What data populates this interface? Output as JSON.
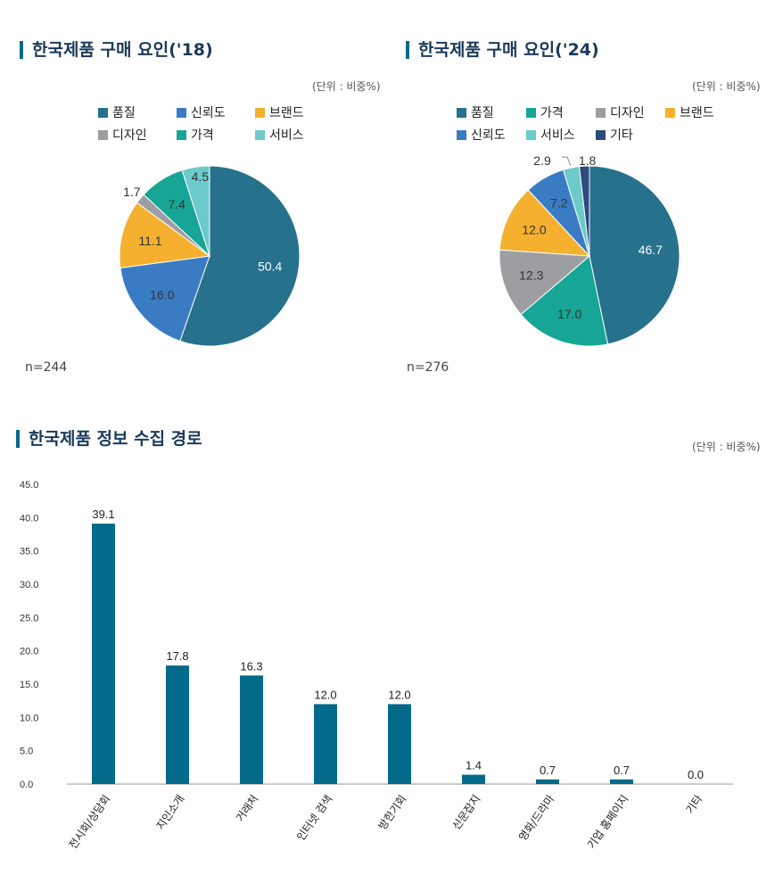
{
  "colors": {
    "품질": "#26718c",
    "신뢰도": "#3a7cc4",
    "브랜드": "#f4b02e",
    "디자인": "#9c9ea1",
    "가격": "#17a596",
    "서비스": "#6ccaca",
    "기타": "#2c4a7c",
    "bar": "#046a8a"
  },
  "chart_data": [
    {
      "type": "pie",
      "title": "한국제품 구매 요인('18)",
      "unit": "(단위 : 비중%)",
      "n": "n=244",
      "legend": [
        "품질",
        "신뢰도",
        "브랜드",
        "디자인",
        "가격",
        "서비스"
      ],
      "slices": [
        {
          "label": "품질",
          "value": 50.4
        },
        {
          "label": "신뢰도",
          "value": 16.0
        },
        {
          "label": "브랜드",
          "value": 11.1
        },
        {
          "label": "디자인",
          "value": 1.7
        },
        {
          "label": "가격",
          "value": 7.4
        },
        {
          "label": "서비스",
          "value": 4.5
        }
      ]
    },
    {
      "type": "pie",
      "title": "한국제품 구매 요인('24)",
      "unit": "(단위 : 비중%)",
      "n": "n=276",
      "legend": [
        "품질",
        "가격",
        "디자인",
        "브랜드",
        "신뢰도",
        "서비스",
        "기타"
      ],
      "slices": [
        {
          "label": "품질",
          "value": 46.7
        },
        {
          "label": "가격",
          "value": 17.0
        },
        {
          "label": "디자인",
          "value": 12.3
        },
        {
          "label": "브랜드",
          "value": 12.0
        },
        {
          "label": "신뢰도",
          "value": 7.2
        },
        {
          "label": "서비스",
          "value": 2.9
        },
        {
          "label": "기타",
          "value": 1.8
        }
      ]
    },
    {
      "type": "bar",
      "title": "한국제품 정보 수집 경로",
      "unit": "(단위 : 비중%)",
      "categories": [
        "전시회/상담회",
        "지인소개",
        "거래처",
        "인터넷 검색",
        "방한기회",
        "신문잡지",
        "영화/드라마",
        "기업 홈페이지",
        "기타"
      ],
      "values": [
        39.1,
        17.8,
        16.3,
        12.0,
        12.0,
        1.4,
        0.7,
        0.7,
        0.0
      ],
      "ylim": [
        0,
        45
      ],
      "yticks": [
        "0.0",
        "5.0",
        "10.0",
        "15.0",
        "20.0",
        "25.0",
        "30.0",
        "35.0",
        "40.0",
        "45.0"
      ],
      "grid": false
    }
  ]
}
